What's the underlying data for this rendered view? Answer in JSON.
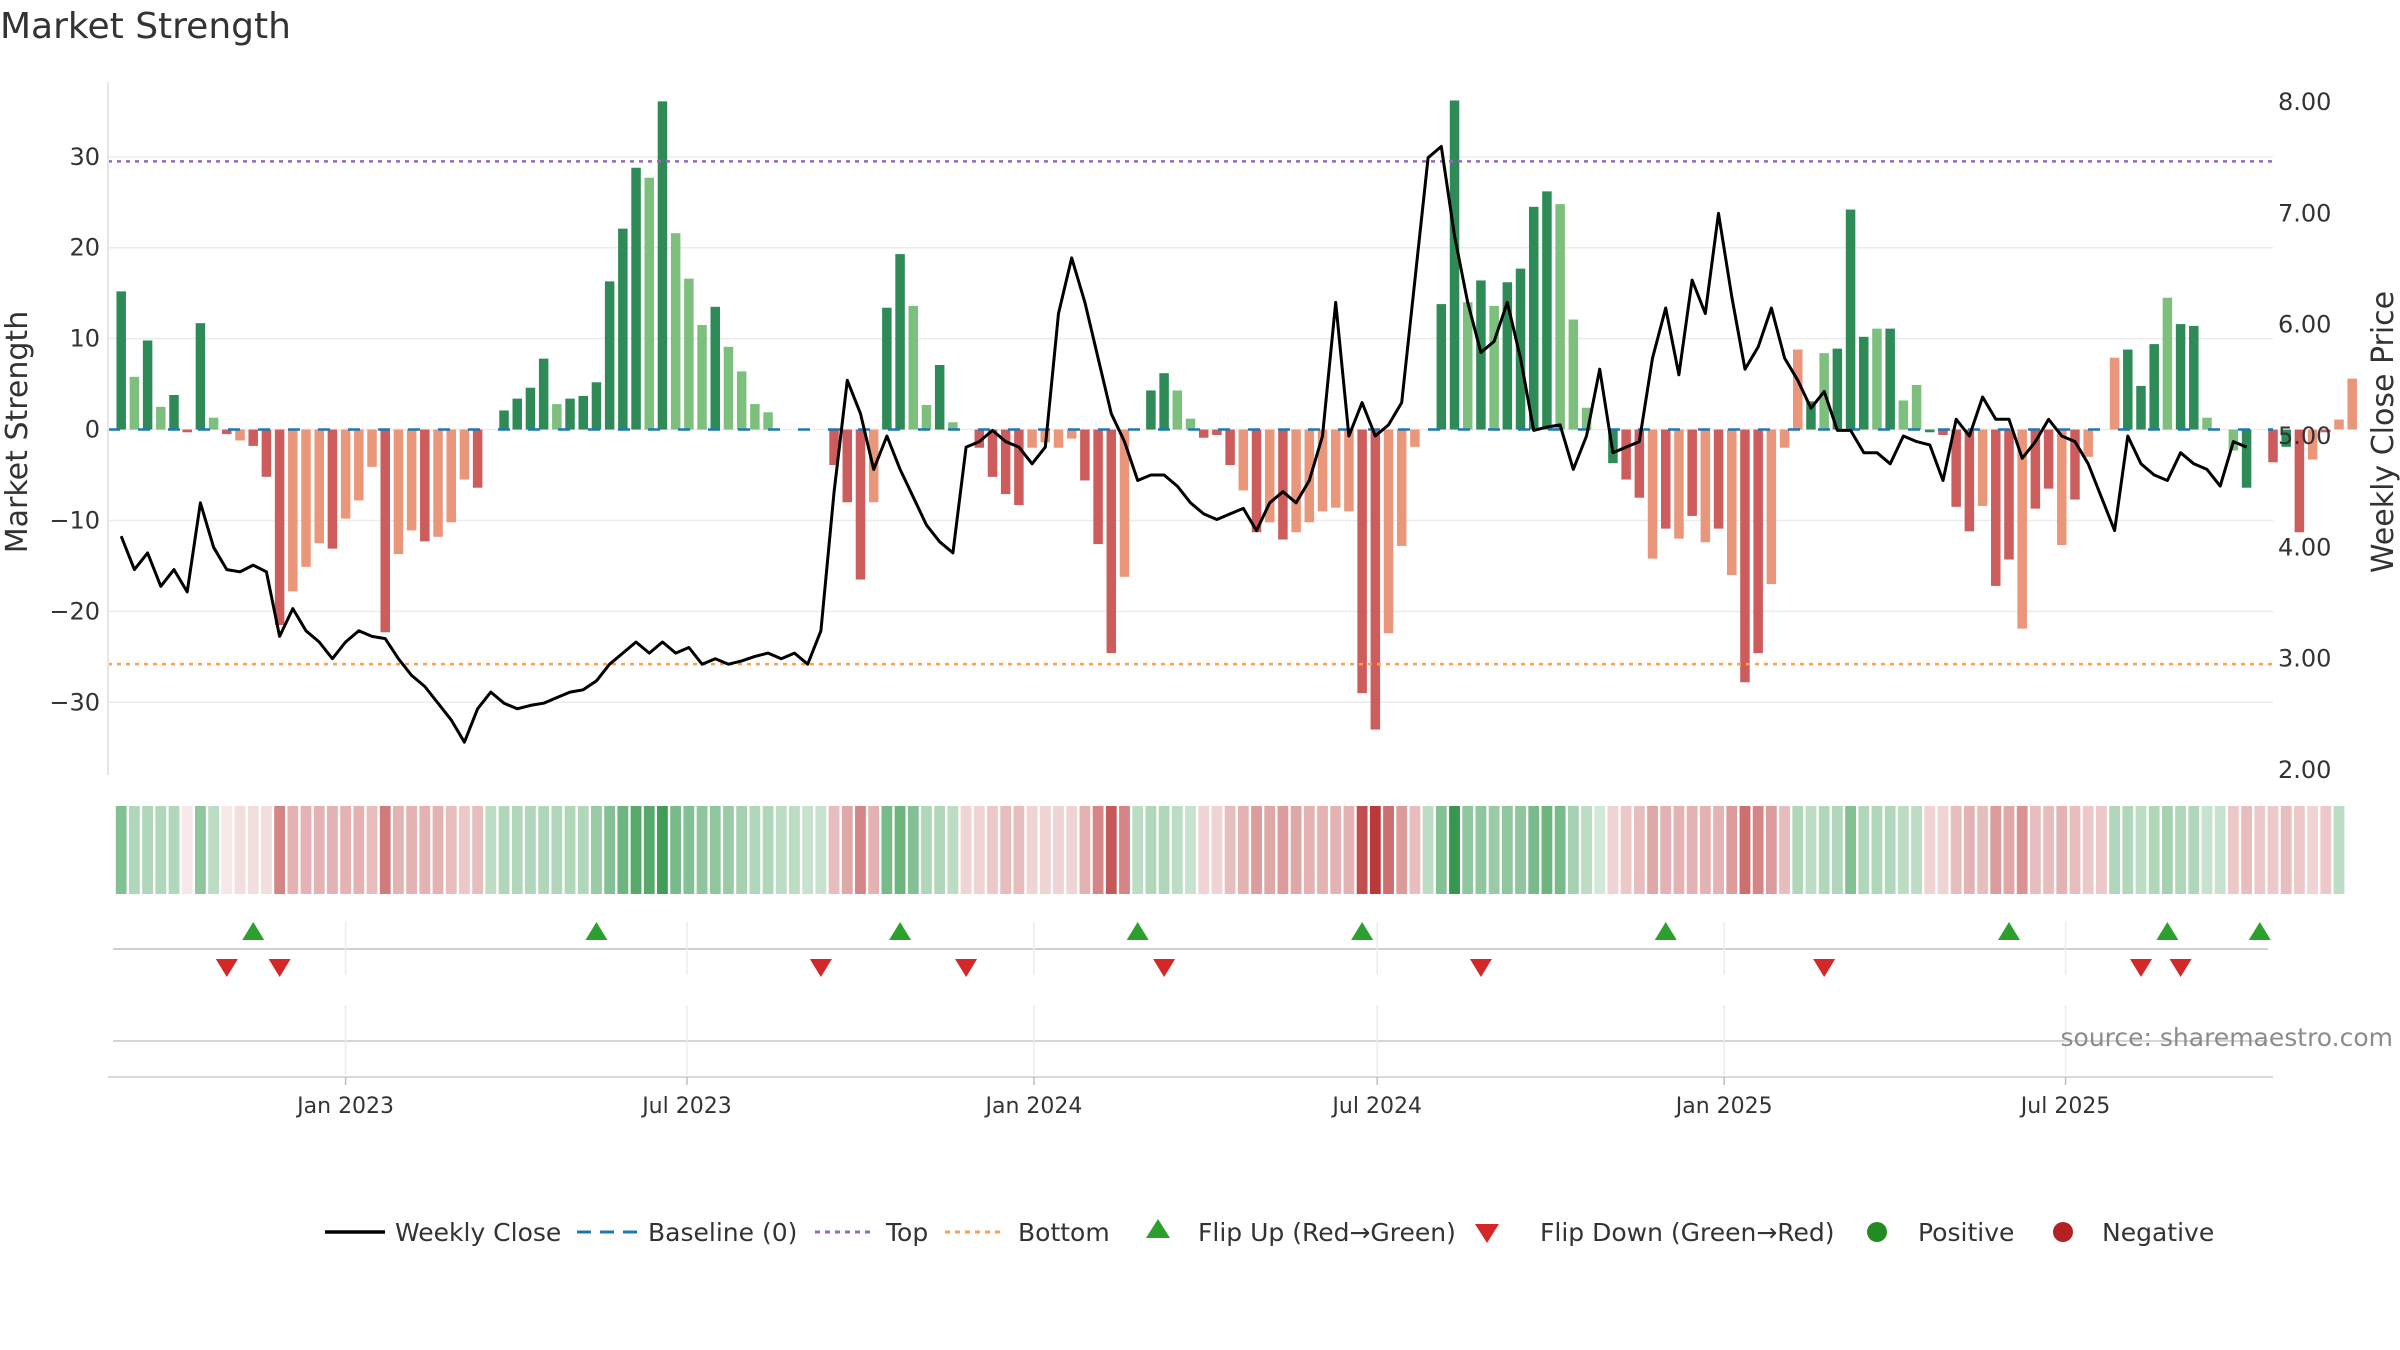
{
  "colors": {
    "strong_green": "#2e8b57",
    "light_green": "#7dbf7d",
    "strong_red": "#cd5c5c",
    "light_red": "#e9967a",
    "line": "#000000",
    "baseline": "#1f77b4",
    "top": "#9467bd",
    "bottom": "#ff9f4a",
    "flip_up": "#2ca02c",
    "flip_down": "#d62728",
    "positive": "#228b22",
    "negative": "#b22222"
  },
  "chart_data": {
    "type": "bar+line",
    "title": "Market Strength",
    "ylabel_left": "Market Strength",
    "ylabel_right": "Weekly Close Price",
    "ylim_left": [
      -38,
      39
    ],
    "ylim_right": [
      2.0,
      8.0
    ],
    "yticks_left": [
      "30",
      "20",
      "10",
      "0",
      "−10",
      "−20",
      "−30"
    ],
    "yticks_right": [
      "8.00",
      "7.00",
      "6.00",
      "5.00",
      "4.00",
      "3.00",
      "2.00"
    ],
    "xlim": [
      "2022-08-28",
      "2025-10-19"
    ],
    "xticks": [
      {
        "date": "2023-01-01",
        "label": "Jan 2023"
      },
      {
        "date": "2023-07-01",
        "label": "Jul 2023"
      },
      {
        "date": "2024-01-01",
        "label": "Jan 2024"
      },
      {
        "date": "2024-07-01",
        "label": "Jul 2024"
      },
      {
        "date": "2025-01-01",
        "label": "Jan 2025"
      },
      {
        "date": "2025-07-01",
        "label": "Jul 2025"
      }
    ],
    "top_level": 29.5,
    "bottom_level": -25.8,
    "baseline": 0,
    "start_date": "2022-09-04",
    "week_days": 7,
    "strength": [
      15.2,
      5.8,
      9.8,
      2.5,
      3.8,
      -0.3,
      11.7,
      1.3,
      -0.5,
      -1.2,
      -1.8,
      -5.2,
      -21.5,
      -17.8,
      -15.1,
      -12.5,
      -13.1,
      -9.8,
      -7.8,
      -4.1,
      -22.3,
      -13.7,
      -11.1,
      -12.3,
      -11.8,
      -10.2,
      -5.5,
      -6.4,
      0,
      2.1,
      3.4,
      4.6,
      7.8,
      2.8,
      3.4,
      3.7,
      5.2,
      16.3,
      22.1,
      28.8,
      27.7,
      36.1,
      21.6,
      16.6,
      11.5,
      13.5,
      9.1,
      6.4,
      2.8,
      1.9,
      0,
      0,
      0,
      0,
      -3.9,
      -8.0,
      -16.5,
      -8.0,
      13.4,
      19.3,
      13.6,
      2.7,
      7.1,
      0.8,
      0,
      -2.0,
      -5.2,
      -7.1,
      -8.3,
      -2.0,
      -1.4,
      -2.0,
      -1.0,
      -5.6,
      -12.6,
      -24.6,
      -16.2,
      0,
      4.3,
      6.2,
      4.3,
      1.2,
      -0.9,
      -0.6,
      -3.9,
      -6.7,
      -11.3,
      -10.2,
      -12.1,
      -11.3,
      -10.2,
      -9.0,
      -8.6,
      -9.0,
      -29.0,
      -33.0,
      -22.4,
      -12.8,
      -1.9,
      0,
      13.8,
      36.2,
      14.0,
      16.4,
      13.6,
      16.2,
      17.7,
      24.5,
      26.2,
      24.8,
      12.1,
      2.4,
      0,
      -3.7,
      -5.5,
      -7.5,
      -14.2,
      -10.9,
      -12.0,
      -9.5,
      -12.4,
      -10.9,
      -16.0,
      -27.8,
      -24.6,
      -17.0,
      -2.0,
      8.8,
      3.1,
      8.4,
      8.9,
      24.2,
      10.2,
      11.1,
      11.1,
      3.2,
      4.9,
      -0.3,
      -0.6,
      -8.5,
      -11.2,
      -8.4,
      -17.2,
      -14.3,
      -21.9,
      -8.7,
      -6.5,
      -12.7,
      -7.7,
      -3.0,
      0,
      7.9,
      8.8,
      4.8,
      9.4,
      14.5,
      11.6,
      11.4,
      1.3,
      0,
      -2.3,
      -6.4,
      0,
      -3.6,
      -1.9,
      -11.3,
      -3.3,
      -0.3,
      1.1,
      5.6
    ],
    "strength_color_class": [
      "sg",
      "lg",
      "sg",
      "lg",
      "sg",
      "sr",
      "sg",
      "lg",
      "sr",
      "lr",
      "sr",
      "sr",
      "sr",
      "lr",
      "lr",
      "lr",
      "sr",
      "lr",
      "lr",
      "lr",
      "sr",
      "lr",
      "lr",
      "sr",
      "lr",
      "lr",
      "lr",
      "sr",
      "sg",
      "sg",
      "sg",
      "sg",
      "sg",
      "lg",
      "sg",
      "sg",
      "sg",
      "sg",
      "sg",
      "sg",
      "lg",
      "sg",
      "lg",
      "lg",
      "lg",
      "sg",
      "lg",
      "lg",
      "lg",
      "lg",
      "sg",
      "sg",
      "sg",
      "sg",
      "sr",
      "sr",
      "sr",
      "lr",
      "sg",
      "sg",
      "lg",
      "lg",
      "sg",
      "lg",
      "sr",
      "sr",
      "sr",
      "sr",
      "sr",
      "lr",
      "lr",
      "lr",
      "lr",
      "sr",
      "sr",
      "sr",
      "lr",
      "sg",
      "sg",
      "sg",
      "lg",
      "lg",
      "sr",
      "sr",
      "sr",
      "lr",
      "sr",
      "lr",
      "sr",
      "lr",
      "lr",
      "lr",
      "lr",
      "lr",
      "sr",
      "sr",
      "lr",
      "lr",
      "lr",
      "sg",
      "sg",
      "sg",
      "lg",
      "sg",
      "lg",
      "sg",
      "sg",
      "sg",
      "sg",
      "lg",
      "lg",
      "lg",
      "lg",
      "sg",
      "sr",
      "sr",
      "lr",
      "sr",
      "lr",
      "sr",
      "lr",
      "sr",
      "lr",
      "sr",
      "sr",
      "lr",
      "lr",
      "lr",
      "sg",
      "lg",
      "sg",
      "sg",
      "sg",
      "lg",
      "sg",
      "lg",
      "lg",
      "sg",
      "sr",
      "sr",
      "sr",
      "lr",
      "sr",
      "sr",
      "lr",
      "sr",
      "sr",
      "lr",
      "sr",
      "lr",
      "sr",
      "lr",
      "sg",
      "sg",
      "sg",
      "lg",
      "sg",
      "sg",
      "lg",
      "lg",
      "lg",
      "sg",
      "sr",
      "sr",
      "sg",
      "sr",
      "lr",
      "sr",
      "lr",
      "lr",
      "sg",
      "sg"
    ],
    "close": [
      4.1,
      3.8,
      3.95,
      3.65,
      3.8,
      3.6,
      4.4,
      4.0,
      3.8,
      3.78,
      3.84,
      3.78,
      3.2,
      3.45,
      3.25,
      3.15,
      3.0,
      3.15,
      3.25,
      3.2,
      3.18,
      3.0,
      2.85,
      2.75,
      2.6,
      2.45,
      2.25,
      2.55,
      2.7,
      2.6,
      2.55,
      2.58,
      2.6,
      2.65,
      2.7,
      2.72,
      2.8,
      2.95,
      3.05,
      3.15,
      3.05,
      3.15,
      3.05,
      3.1,
      2.95,
      3.0,
      2.95,
      2.98,
      3.02,
      3.05,
      3.0,
      3.05,
      2.95,
      3.25,
      4.5,
      5.5,
      5.2,
      4.7,
      5.0,
      4.7,
      4.45,
      4.2,
      4.05,
      3.95,
      4.9,
      4.95,
      5.05,
      4.95,
      4.9,
      4.75,
      4.9,
      6.1,
      6.6,
      6.2,
      5.7,
      5.2,
      4.95,
      4.6,
      4.65,
      4.65,
      4.55,
      4.4,
      4.3,
      4.25,
      4.3,
      4.35,
      4.15,
      4.4,
      4.5,
      4.4,
      4.6,
      5.0,
      6.2,
      5.0,
      5.3,
      5.0,
      5.1,
      5.3,
      6.4,
      7.5,
      7.6,
      6.8,
      6.2,
      5.75,
      5.85,
      6.2,
      5.7,
      5.05,
      5.08,
      5.1,
      4.7,
      5.0,
      5.6,
      4.85,
      4.9,
      4.95,
      5.7,
      6.15,
      5.55,
      6.4,
      6.1,
      7.0,
      6.25,
      5.6,
      5.8,
      6.15,
      5.7,
      5.5,
      5.25,
      5.4,
      5.05,
      5.05,
      4.85,
      4.85,
      4.75,
      5.0,
      4.95,
      4.92,
      4.6,
      5.15,
      5.0,
      5.35,
      5.15,
      5.15,
      4.8,
      4.95,
      5.15,
      5.0,
      4.95,
      4.75,
      4.45,
      4.15,
      5.0,
      4.75,
      4.65,
      4.6,
      4.85,
      4.75,
      4.7,
      4.55,
      4.95,
      4.9
    ],
    "heat_intensity": [
      0.55,
      0.35,
      0.35,
      0.35,
      0.35,
      0.1,
      0.5,
      0.3,
      0.1,
      0.15,
      0.15,
      0.15,
      0.55,
      0.35,
      0.35,
      0.35,
      0.35,
      0.35,
      0.35,
      0.3,
      0.6,
      0.35,
      0.35,
      0.35,
      0.35,
      0.3,
      0.25,
      0.3,
      0.3,
      0.35,
      0.35,
      0.35,
      0.35,
      0.35,
      0.35,
      0.35,
      0.45,
      0.55,
      0.65,
      0.75,
      0.75,
      0.85,
      0.6,
      0.55,
      0.5,
      0.5,
      0.45,
      0.4,
      0.35,
      0.35,
      0.3,
      0.3,
      0.25,
      0.25,
      0.3,
      0.4,
      0.55,
      0.35,
      0.6,
      0.65,
      0.55,
      0.35,
      0.35,
      0.3,
      0.2,
      0.2,
      0.25,
      0.3,
      0.3,
      0.2,
      0.2,
      0.2,
      0.2,
      0.35,
      0.55,
      0.75,
      0.55,
      0.3,
      0.35,
      0.35,
      0.3,
      0.25,
      0.2,
      0.2,
      0.3,
      0.35,
      0.45,
      0.4,
      0.45,
      0.4,
      0.35,
      0.35,
      0.35,
      0.35,
      0.8,
      0.9,
      0.65,
      0.45,
      0.3,
      0.3,
      0.55,
      0.9,
      0.5,
      0.5,
      0.45,
      0.5,
      0.5,
      0.6,
      0.65,
      0.6,
      0.4,
      0.3,
      0.2,
      0.2,
      0.25,
      0.3,
      0.4,
      0.35,
      0.35,
      0.35,
      0.35,
      0.35,
      0.45,
      0.65,
      0.55,
      0.45,
      0.3,
      0.35,
      0.3,
      0.35,
      0.35,
      0.55,
      0.35,
      0.35,
      0.35,
      0.3,
      0.3,
      0.2,
      0.2,
      0.3,
      0.35,
      0.3,
      0.45,
      0.4,
      0.5,
      0.3,
      0.3,
      0.35,
      0.3,
      0.25,
      0.25,
      0.35,
      0.35,
      0.3,
      0.35,
      0.4,
      0.35,
      0.35,
      0.25,
      0.25,
      0.25,
      0.3,
      0.25,
      0.25,
      0.3,
      0.25,
      0.2,
      0.25,
      0.3
    ],
    "flip_up_dates": [
      "2022-11-13",
      "2023-05-14",
      "2023-10-22",
      "2024-02-25",
      "2024-06-23",
      "2024-12-01",
      "2025-06-01",
      "2025-08-24",
      "2025-10-12"
    ],
    "flip_down_dates": [
      "2022-10-30",
      "2022-11-27",
      "2023-09-10",
      "2023-11-26",
      "2024-03-10",
      "2024-08-25",
      "2025-02-23",
      "2025-08-10",
      "2025-08-31"
    ],
    "source": "source: sharemaestro.com",
    "legend": [
      "Weekly Close",
      "Baseline (0)",
      "Top",
      "Bottom",
      "Flip Up (Red→Green)",
      "Flip Down (Green→Red)",
      "Positive",
      "Negative"
    ]
  }
}
